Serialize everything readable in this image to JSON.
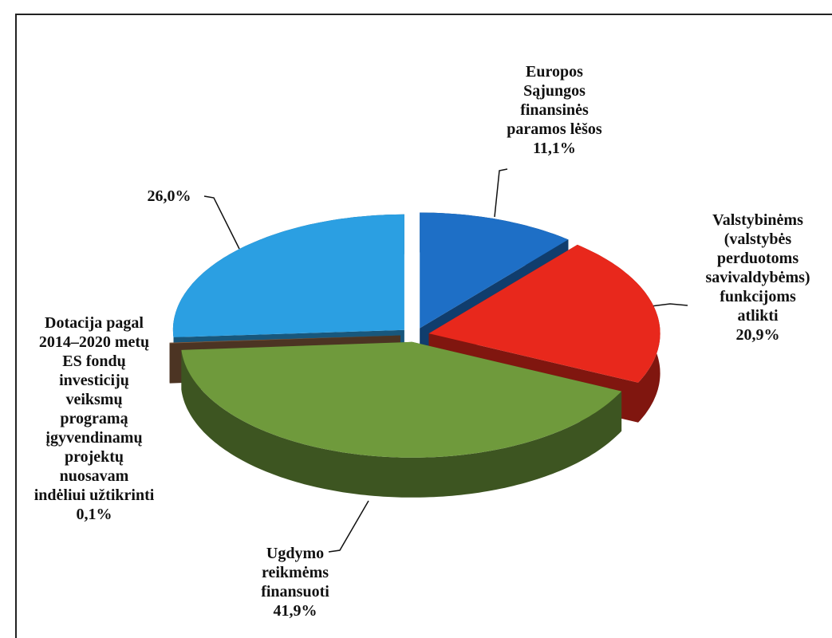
{
  "chart_data": {
    "type": "pie",
    "categories": [
      "Europos\nSąjungos\nfinansinės\nparamos lėšos",
      "Valstybinėms\n(valstybės\nperduotoms\nsavivaldybėms)\nfunkcijoms atlikti",
      "Ugdymo\nreikmėms\nfinansuoti",
      "Dotacija pagal\n2014–2020 metų\nES fondų\ninvesticijų\nveiksmų\nprogramą\nįgyvendinamų\nprojektų\nnuosavam\nindėliui užtikrinti",
      null
    ],
    "values": [
      11.1,
      20.9,
      41.9,
      0.1,
      26.0
    ],
    "value_labels": [
      "11,1%",
      "20,9%",
      "41,9%",
      "0,1%",
      "26,0%"
    ],
    "colors": [
      "#1e6fc6",
      "#e8281c",
      "#6f9a3c",
      "#8a5f3f",
      "#2b9fe2"
    ]
  }
}
